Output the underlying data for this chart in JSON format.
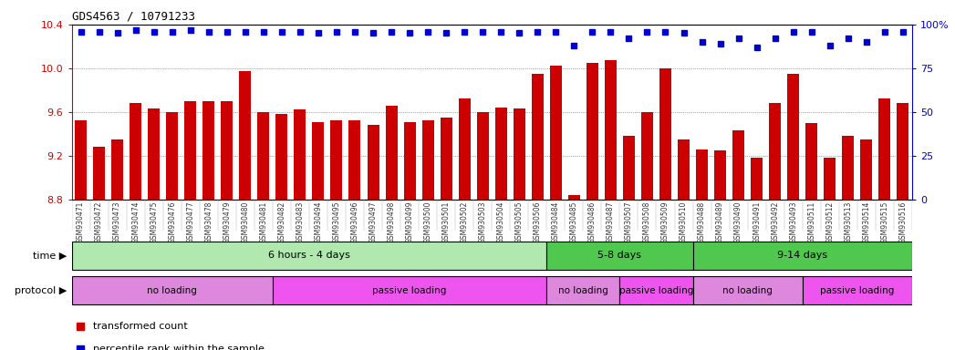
{
  "title": "GDS4563 / 10791233",
  "samples": [
    "GSM930471",
    "GSM930472",
    "GSM930473",
    "GSM930474",
    "GSM930475",
    "GSM930476",
    "GSM930477",
    "GSM930478",
    "GSM930479",
    "GSM930480",
    "GSM930481",
    "GSM930482",
    "GSM930483",
    "GSM930494",
    "GSM930495",
    "GSM930496",
    "GSM930497",
    "GSM930498",
    "GSM930499",
    "GSM930500",
    "GSM930501",
    "GSM930502",
    "GSM930503",
    "GSM930504",
    "GSM930505",
    "GSM930506",
    "GSM930484",
    "GSM930485",
    "GSM930486",
    "GSM930487",
    "GSM930507",
    "GSM930508",
    "GSM930509",
    "GSM930510",
    "GSM930488",
    "GSM930489",
    "GSM930490",
    "GSM930491",
    "GSM930492",
    "GSM930493",
    "GSM930511",
    "GSM930512",
    "GSM930513",
    "GSM930514",
    "GSM930515",
    "GSM930516"
  ],
  "bar_values": [
    9.52,
    9.28,
    9.35,
    9.68,
    9.63,
    9.6,
    9.7,
    9.7,
    9.7,
    9.97,
    9.6,
    9.58,
    9.62,
    9.51,
    9.52,
    9.52,
    9.48,
    9.66,
    9.51,
    9.52,
    9.55,
    9.72,
    9.6,
    9.64,
    9.63,
    9.95,
    10.02,
    8.84,
    10.05,
    10.07,
    9.38,
    9.6,
    10.0,
    9.35,
    9.26,
    9.25,
    9.43,
    9.18,
    9.68,
    9.95,
    9.5,
    9.18,
    9.38,
    9.35,
    9.72,
    9.68
  ],
  "percentile_values": [
    96,
    96,
    95,
    97,
    96,
    96,
    97,
    96,
    96,
    96,
    96,
    96,
    96,
    95,
    96,
    96,
    95,
    96,
    95,
    96,
    95,
    96,
    96,
    96,
    95,
    96,
    96,
    88,
    96,
    96,
    92,
    96,
    96,
    95,
    90,
    89,
    92,
    87,
    92,
    96,
    96,
    88,
    92,
    90,
    96,
    96
  ],
  "ylim_left": [
    8.8,
    10.4
  ],
  "ylim_right": [
    0,
    100
  ],
  "yticks_left": [
    8.8,
    9.2,
    9.6,
    10.0,
    10.4
  ],
  "yticks_right": [
    0,
    25,
    50,
    75,
    100
  ],
  "bar_color": "#cc0000",
  "marker_color": "#0000cc",
  "bg_color": "#ffffff",
  "axis_label_color": "#cc0000",
  "right_axis_color": "#0000cc",
  "xticklabel_bg": "#d0d0d0",
  "time_groups": [
    {
      "label": "6 hours - 4 days",
      "start": 0,
      "end": 26,
      "color": "#b0e8b0"
    },
    {
      "label": "5-8 days",
      "start": 26,
      "end": 34,
      "color": "#50c850"
    },
    {
      "label": "9-14 days",
      "start": 34,
      "end": 46,
      "color": "#50c850"
    }
  ],
  "protocol_groups": [
    {
      "label": "no loading",
      "start": 0,
      "end": 11,
      "color": "#dd88dd"
    },
    {
      "label": "passive loading",
      "start": 11,
      "end": 26,
      "color": "#ee55ee"
    },
    {
      "label": "no loading",
      "start": 26,
      "end": 30,
      "color": "#dd88dd"
    },
    {
      "label": "passive loading",
      "start": 30,
      "end": 34,
      "color": "#ee55ee"
    },
    {
      "label": "no loading",
      "start": 34,
      "end": 40,
      "color": "#dd88dd"
    },
    {
      "label": "passive loading",
      "start": 40,
      "end": 46,
      "color": "#ee55ee"
    }
  ],
  "legend_bar_label": "transformed count",
  "legend_marker_label": "percentile rank within the sample",
  "grid_color": "#555555",
  "tick_label_color": "#333333"
}
